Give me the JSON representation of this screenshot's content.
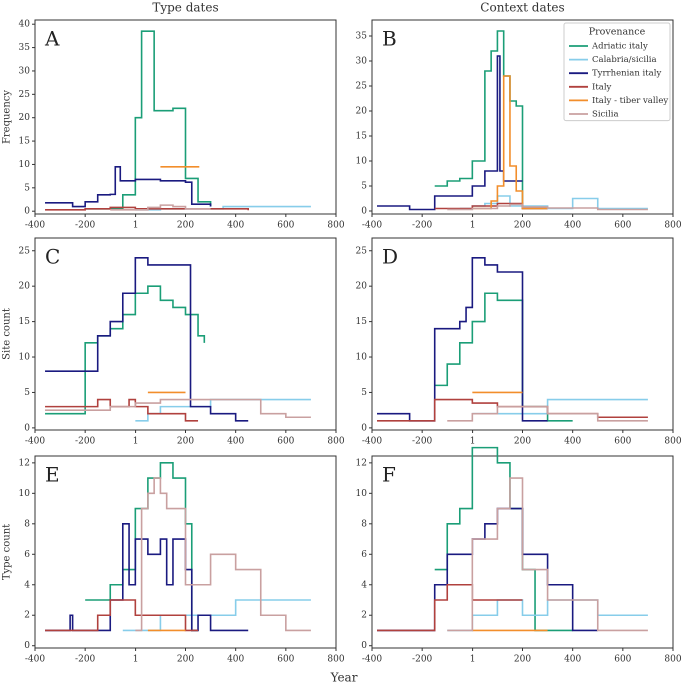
{
  "xlabel": "Year",
  "chart_data": [
    {
      "type": "line",
      "step": "post",
      "label": "A",
      "title": "Type dates",
      "ylabel": "Frequency",
      "xlim": [
        -400,
        800
      ],
      "xticks": [
        -400,
        -200,
        1,
        200,
        400,
        600,
        800
      ],
      "ylim": [
        -0.6,
        40.9
      ],
      "yticks": [
        0,
        5,
        10,
        15,
        20,
        25,
        30,
        35,
        40
      ],
      "series": [
        {
          "name": "Adriatic italy",
          "color": "#1b9e77",
          "x": [
            -200,
            -50,
            0,
            25,
            75,
            150,
            200,
            250,
            300
          ],
          "values": [
            0.5,
            3.5,
            20,
            38.5,
            21.5,
            22,
            7,
            2,
            1
          ]
        },
        {
          "name": "Calabria/sicilia",
          "color": "#87cdea",
          "x": [
            0,
            100,
            200,
            350,
            700
          ],
          "values": [
            0.3,
            0.5,
            0.5,
            1,
            1
          ]
        },
        {
          "name": "Tyrrhenian italy",
          "color": "#1a1a80",
          "x": [
            -360,
            -250,
            -200,
            -150,
            -100,
            -80,
            -60,
            0,
            100,
            200,
            225,
            300
          ],
          "values": [
            1.8,
            1,
            2,
            3.5,
            3.6,
            9.5,
            6.5,
            6.8,
            6.5,
            6.2,
            1.5,
            1
          ]
        },
        {
          "name": "Italy",
          "color": "#b0413e",
          "x": [
            -360,
            -200,
            -100,
            0,
            200,
            450
          ],
          "values": [
            0.3,
            0.5,
            0.8,
            0.5,
            0.5,
            0.2
          ]
        },
        {
          "name": "Italy - tiber valley",
          "color": "#f28e2b",
          "x": [
            100,
            255
          ],
          "values": [
            9.5,
            9.5
          ]
        },
        {
          "name": "Sicilia",
          "color": "#c9a0a0",
          "x": [
            -100,
            50,
            100,
            150,
            200,
            300
          ],
          "values": [
            0.3,
            0.8,
            1.3,
            1,
            0.5,
            0.5
          ]
        }
      ]
    },
    {
      "type": "line",
      "step": "post",
      "label": "B",
      "title": "Context dates",
      "xlim": [
        -400,
        800
      ],
      "xticks": [
        -400,
        -200,
        1,
        200,
        400,
        600,
        800
      ],
      "ylim": [
        -0.6,
        38.2
      ],
      "yticks": [
        0,
        5,
        10,
        15,
        20,
        25,
        30,
        35
      ],
      "legend": "upper right",
      "legend_title": "Provenance",
      "series": [
        {
          "name": "Adriatic italy",
          "color": "#1b9e77",
          "x": [
            -150,
            -100,
            -50,
            0,
            50,
            75,
            100,
            125,
            150,
            175,
            200,
            300
          ],
          "values": [
            5,
            6,
            6.5,
            10,
            28,
            32,
            36,
            27,
            22,
            21,
            0.5,
            0.5
          ]
        },
        {
          "name": "Calabria/sicilia",
          "color": "#87cdea",
          "x": [
            -50,
            0,
            50,
            100,
            150,
            300,
            400,
            500,
            700
          ],
          "values": [
            0.5,
            1,
            1.5,
            3,
            1,
            0.5,
            2.5,
            0.5,
            0.5
          ]
        },
        {
          "name": "Tyrrhenian italy",
          "color": "#1a1a80",
          "x": [
            -380,
            -250,
            -150,
            0,
            50,
            100,
            110,
            125,
            150,
            200
          ],
          "values": [
            1,
            0.3,
            3,
            5,
            8,
            31,
            8,
            6,
            6,
            6
          ]
        },
        {
          "name": "Italy",
          "color": "#b0413e",
          "x": [
            -150,
            0,
            100,
            200,
            300
          ],
          "values": [
            0.5,
            1,
            1.5,
            0.5,
            0.5
          ]
        },
        {
          "name": "Italy - tiber valley",
          "color": "#f28e2b",
          "x": [
            0,
            75,
            100,
            125,
            150,
            175,
            200,
            300
          ],
          "values": [
            0.5,
            2,
            5,
            27,
            9,
            4,
            0.5,
            0.5
          ]
        },
        {
          "name": "Sicilia",
          "color": "#c9a0a0",
          "x": [
            -100,
            0,
            100,
            150,
            200,
            300,
            500,
            700
          ],
          "values": [
            0.3,
            0.5,
            1,
            1.3,
            0.8,
            0.6,
            0.3,
            0.3
          ]
        }
      ]
    },
    {
      "type": "line",
      "step": "post",
      "label": "C",
      "ylabel": "Site count",
      "xlim": [
        -400,
        800
      ],
      "xticks": [
        -400,
        -200,
        1,
        200,
        400,
        600,
        800
      ],
      "ylim": [
        -0.3,
        26.8
      ],
      "yticks": [
        0,
        5,
        10,
        15,
        20,
        25
      ],
      "series": [
        {
          "name": "Adriatic italy",
          "color": "#1b9e77",
          "x": [
            -360,
            -200,
            -150,
            -100,
            -50,
            0,
            50,
            100,
            150,
            200,
            250,
            275
          ],
          "values": [
            2,
            12,
            13,
            14,
            16,
            19,
            20,
            18,
            17,
            16,
            13,
            12
          ]
        },
        {
          "name": "Calabria/sicilia",
          "color": "#87cdea",
          "x": [
            0,
            50,
            100,
            200,
            300,
            700
          ],
          "values": [
            1,
            2,
            3,
            3,
            4,
            4
          ]
        },
        {
          "name": "Tyrrhenian italy",
          "color": "#1a1a80",
          "x": [
            -360,
            -200,
            -150,
            -100,
            -50,
            0,
            50,
            200,
            220,
            300,
            400,
            450
          ],
          "values": [
            8,
            8,
            13,
            15,
            19,
            24,
            23,
            23,
            3,
            2,
            1,
            1
          ]
        },
        {
          "name": "Italy",
          "color": "#b0413e",
          "x": [
            -360,
            -200,
            -150,
            -100,
            -50,
            -25,
            0,
            50,
            100,
            200,
            250
          ],
          "values": [
            3,
            3,
            4,
            3,
            3,
            4,
            3,
            2,
            2,
            1,
            1
          ]
        },
        {
          "name": "Italy - tiber valley",
          "color": "#f28e2b",
          "x": [
            50,
            200
          ],
          "values": [
            5,
            5
          ]
        },
        {
          "name": "Sicilia",
          "color": "#c9a0a0",
          "x": [
            -360,
            -100,
            0,
            100,
            200,
            300,
            500,
            600,
            700
          ],
          "values": [
            2.5,
            3,
            3.5,
            4,
            4,
            4,
            2,
            1.5,
            1.5
          ]
        }
      ]
    },
    {
      "type": "line",
      "step": "post",
      "label": "D",
      "xlim": [
        -400,
        800
      ],
      "xticks": [
        -400,
        -200,
        1,
        200,
        400,
        600,
        800
      ],
      "ylim": [
        -0.3,
        26.8
      ],
      "yticks": [
        0,
        5,
        10,
        15,
        20,
        25
      ],
      "series": [
        {
          "name": "Adriatic italy",
          "color": "#1b9e77",
          "x": [
            -150,
            -100,
            -50,
            0,
            50,
            100,
            150,
            200,
            300,
            400
          ],
          "values": [
            6,
            9,
            12,
            15,
            19,
            18,
            18,
            3,
            1,
            1
          ]
        },
        {
          "name": "Calabria/sicilia",
          "color": "#87cdea",
          "x": [
            0,
            200,
            300,
            700
          ],
          "values": [
            2,
            2,
            4,
            4
          ]
        },
        {
          "name": "Tyrrhenian italy",
          "color": "#1a1a80",
          "x": [
            -380,
            -250,
            -150,
            -50,
            -25,
            0,
            50,
            100,
            200,
            300
          ],
          "values": [
            2,
            1,
            14,
            15,
            17,
            24,
            23,
            22,
            1,
            1
          ]
        },
        {
          "name": "Italy",
          "color": "#b0413e",
          "x": [
            -380,
            -150,
            0,
            100,
            200,
            300,
            400,
            500,
            700
          ],
          "values": [
            1,
            4,
            3.5,
            3,
            3,
            2,
            2,
            1.5,
            1.5
          ]
        },
        {
          "name": "Italy - tiber valley",
          "color": "#f28e2b",
          "x": [
            0,
            200
          ],
          "values": [
            5,
            5
          ]
        },
        {
          "name": "Sicilia",
          "color": "#c9a0a0",
          "x": [
            -100,
            0,
            100,
            200,
            300,
            500,
            700
          ],
          "values": [
            1,
            2,
            3,
            3,
            2,
            1,
            1
          ]
        }
      ]
    },
    {
      "type": "line",
      "step": "post",
      "label": "E",
      "ylabel": "Type count",
      "xlim": [
        -400,
        800
      ],
      "xticks": [
        -400,
        -200,
        1,
        200,
        400,
        600,
        800
      ],
      "ylim": [
        -0.15,
        12.45
      ],
      "yticks": [
        0,
        2,
        4,
        6,
        8,
        10,
        12
      ],
      "series": [
        {
          "name": "Adriatic italy",
          "color": "#1b9e77",
          "x": [
            -200,
            -150,
            -100,
            -50,
            0,
            50,
            100,
            150,
            200,
            225,
            250
          ],
          "values": [
            3,
            3,
            4,
            5,
            9,
            11,
            12,
            11,
            8,
            1,
            1
          ]
        },
        {
          "name": "Calabria/sicilia",
          "color": "#87cdea",
          "x": [
            -50,
            100,
            300,
            400,
            700
          ],
          "values": [
            1,
            2,
            2,
            3,
            3
          ]
        },
        {
          "name": "Tyrrhenian italy",
          "color": "#1a1a80",
          "x": [
            -360,
            -260,
            -250,
            -100,
            -50,
            -25,
            0,
            50,
            100,
            125,
            150,
            200,
            225,
            250,
            300,
            400,
            450
          ],
          "values": [
            1,
            2,
            1,
            3,
            8,
            4,
            7,
            6,
            7,
            4,
            7,
            5,
            1,
            2,
            1,
            1,
            1
          ]
        },
        {
          "name": "Italy",
          "color": "#b0413e",
          "x": [
            -360,
            -200,
            -150,
            -100,
            -50,
            0,
            50,
            100,
            200,
            250
          ],
          "values": [
            1,
            1,
            2,
            3,
            3,
            2,
            2,
            2,
            1,
            1
          ]
        },
        {
          "name": "Italy - tiber valley",
          "color": "#f28e2b",
          "x": [
            50,
            200
          ],
          "values": [
            1,
            1
          ]
        },
        {
          "name": "Sicilia",
          "color": "#c9a0a0",
          "x": [
            0,
            25,
            50,
            75,
            100,
            125,
            150,
            200,
            225,
            300,
            350,
            400,
            500,
            600,
            700
          ],
          "values": [
            1,
            9,
            10,
            11,
            10,
            9,
            9,
            4,
            4,
            6,
            6,
            5,
            2,
            1,
            1
          ]
        }
      ]
    },
    {
      "type": "line",
      "step": "post",
      "label": "F",
      "xlim": [
        -400,
        800
      ],
      "xticks": [
        -400,
        -200,
        1,
        200,
        400,
        600,
        800
      ],
      "ylim": [
        -0.15,
        12.45
      ],
      "yticks": [
        0,
        2,
        4,
        6,
        8,
        10,
        12
      ],
      "series": [
        {
          "name": "Adriatic italy",
          "color": "#1b9e77",
          "x": [
            -150,
            -100,
            -50,
            0,
            100,
            150,
            200,
            250,
            400
          ],
          "values": [
            5,
            8,
            9,
            13,
            12,
            9,
            5,
            1,
            1
          ]
        },
        {
          "name": "Calabria/sicilia",
          "color": "#87cdea",
          "x": [
            -100,
            0,
            100,
            200,
            300,
            500,
            700
          ],
          "values": [
            1,
            2,
            3,
            2,
            3,
            2,
            2
          ]
        },
        {
          "name": "Tyrrhenian italy",
          "color": "#1a1a80",
          "x": [
            -380,
            -150,
            -100,
            0,
            50,
            100,
            200,
            300,
            400,
            500
          ],
          "values": [
            1,
            4,
            6,
            7,
            8,
            9,
            6,
            4,
            1,
            1
          ]
        },
        {
          "name": "Italy",
          "color": "#b0413e",
          "x": [
            -380,
            -150,
            -100,
            0,
            200
          ],
          "values": [
            1,
            3,
            4,
            3,
            3
          ]
        },
        {
          "name": "Italy - tiber valley",
          "color": "#f28e2b",
          "x": [
            0,
            300
          ],
          "values": [
            1,
            1
          ]
        },
        {
          "name": "Sicilia",
          "color": "#c9a0a0",
          "x": [
            -100,
            0,
            100,
            150,
            200,
            300,
            500,
            700
          ],
          "values": [
            1,
            7,
            9,
            11,
            5,
            3,
            1,
            1
          ]
        }
      ]
    }
  ]
}
